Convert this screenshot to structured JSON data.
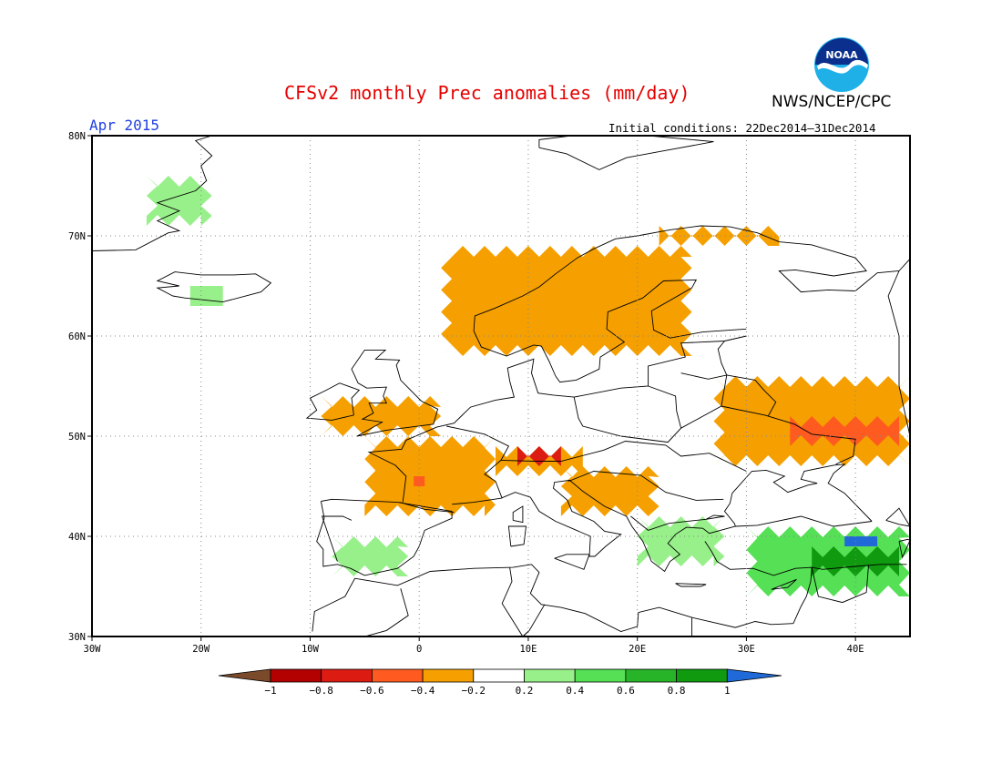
{
  "header": {
    "title": "CFSv2 monthly Prec anomalies (mm/day)",
    "organization": "NWS/NCEP/CPC",
    "month": "Apr 2015",
    "initial_conditions": "Initial conditions: 22Dec2014–31Dec2014"
  },
  "logo": {
    "text": "NOAA",
    "icon": "noaa-logo"
  },
  "map": {
    "projection": "lat-lon",
    "lon_range": [
      -30,
      45
    ],
    "lat_range": [
      30,
      80
    ],
    "grid": "dotted",
    "lat_labels": [
      "80N",
      "70N",
      "60N",
      "50N",
      "40N",
      "30N"
    ],
    "lon_labels": [
      "30W",
      "20W",
      "10W",
      "0",
      "10E",
      "20E",
      "30E",
      "40E"
    ]
  },
  "colorbar": {
    "tick_labels": [
      "−1",
      "−0.8",
      "−0.6",
      "−0.4",
      "−0.2",
      "0.2",
      "0.4",
      "0.6",
      "0.8",
      "1"
    ],
    "bins": [
      {
        "range": "< -1",
        "color": "#7a4a2a"
      },
      {
        "range": "-1 to -0.8",
        "color": "#b30000"
      },
      {
        "range": "-0.8 to -0.6",
        "color": "#dc1c13"
      },
      {
        "range": "-0.6 to -0.4",
        "color": "#ff5a1f"
      },
      {
        "range": "-0.4 to -0.2",
        "color": "#f5a000"
      },
      {
        "range": "-0.2 to 0.2",
        "color": "#ffffff"
      },
      {
        "range": "0.2 to 0.4",
        "color": "#98f08a"
      },
      {
        "range": "0.4 to 0.6",
        "color": "#55e055"
      },
      {
        "range": "0.6 to 0.8",
        "color": "#28b428"
      },
      {
        "range": "0.8 to 1",
        "color": "#0f9a0f"
      },
      {
        "range": "> 1",
        "color": "#1f6ad8"
      }
    ]
  },
  "anomaly_regions": [
    {
      "name": "Scandinavia",
      "lon": [
        2,
        25
      ],
      "lat": [
        58,
        69
      ],
      "class": "-0.4 to -0.2"
    },
    {
      "name": "Kola north coast",
      "lon": [
        22,
        33
      ],
      "lat": [
        69,
        71
      ],
      "class": "-0.4 to -0.2"
    },
    {
      "name": "Great Britain",
      "lon": [
        -9,
        2
      ],
      "lat": [
        50,
        54
      ],
      "class": "-0.4 to -0.2"
    },
    {
      "name": "France",
      "lon": [
        -5,
        7
      ],
      "lat": [
        42,
        50
      ],
      "class": "-0.4 to -0.2"
    },
    {
      "name": "Western France spot",
      "lon": [
        -0.5,
        0.5
      ],
      "lat": [
        45,
        46
      ],
      "class": "-0.6 to -0.4"
    },
    {
      "name": "Alps",
      "lon": [
        7,
        15
      ],
      "lat": [
        46,
        49
      ],
      "class": "-0.4 to -0.2"
    },
    {
      "name": "Alps core",
      "lon": [
        9,
        13
      ],
      "lat": [
        47,
        49
      ],
      "class": "-0.8 to -0.6"
    },
    {
      "name": "Balkans west",
      "lon": [
        13,
        22
      ],
      "lat": [
        42,
        47
      ],
      "class": "-0.4 to -0.2"
    },
    {
      "name": "Southern Russia",
      "lon": [
        27,
        45
      ],
      "lat": [
        47,
        56
      ],
      "class": "-0.4 to -0.2"
    },
    {
      "name": "Southern Russia core",
      "lon": [
        34,
        44
      ],
      "lat": [
        49,
        52
      ],
      "class": "-0.6 to -0.4"
    },
    {
      "name": "Iberia",
      "lon": [
        -8,
        -1
      ],
      "lat": [
        36,
        40
      ],
      "class": "0.2 to 0.4"
    },
    {
      "name": "Greece and Aegean",
      "lon": [
        20,
        28
      ],
      "lat": [
        37,
        42
      ],
      "class": "0.2 to 0.4"
    },
    {
      "name": "Anatolia",
      "lon": [
        30,
        45
      ],
      "lat": [
        34,
        41
      ],
      "class": "0.4 to 0.6"
    },
    {
      "name": "Eastern Anatolia core",
      "lon": [
        36,
        44
      ],
      "lat": [
        36,
        39
      ],
      "class": "0.8 to 1"
    },
    {
      "name": "Eastern Anatolia peak",
      "lon": [
        39,
        42
      ],
      "lat": [
        39,
        40
      ],
      "class": "> 1"
    },
    {
      "name": "Greenland east",
      "lon": [
        -25,
        -19
      ],
      "lat": [
        71,
        76
      ],
      "class": "0.2 to 0.4"
    },
    {
      "name": "Iceland",
      "lon": [
        -21,
        -18
      ],
      "lat": [
        63,
        65
      ],
      "class": "0.2 to 0.4"
    }
  ]
}
